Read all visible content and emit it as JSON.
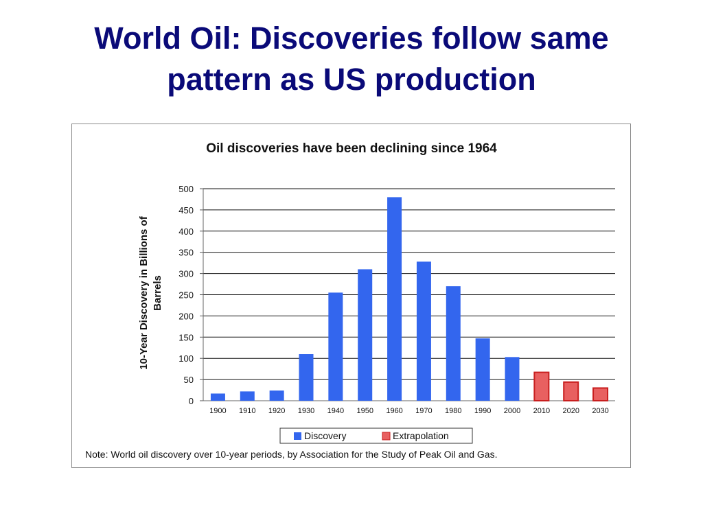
{
  "slide": {
    "title_line1": "World Oil: Discoveries follow same",
    "title_line2": "pattern as US production"
  },
  "chart_data": {
    "type": "bar",
    "title": "Oil discoveries have been declining since 1964",
    "ylabel_line1": "10-Year Discovery in Billions of",
    "ylabel_line2": "Barrels",
    "xlabel": "",
    "ylim": [
      0,
      500
    ],
    "yticks": [
      0,
      50,
      100,
      150,
      200,
      250,
      300,
      350,
      400,
      450,
      500
    ],
    "grid": true,
    "legend_position": "bottom",
    "categories": [
      "1900",
      "1910",
      "1920",
      "1930",
      "1940",
      "1950",
      "1960",
      "1970",
      "1980",
      "1990",
      "2000",
      "2010",
      "2020",
      "2030"
    ],
    "series": [
      {
        "name": "Discovery",
        "color": "#3366ee",
        "values": [
          17,
          22,
          24,
          110,
          255,
          310,
          480,
          328,
          270,
          147,
          103,
          null,
          null,
          null
        ]
      },
      {
        "name": "Extrapolation",
        "color": "#e86060",
        "border": "#c81e1e",
        "values": [
          null,
          null,
          null,
          null,
          null,
          null,
          null,
          null,
          null,
          null,
          null,
          67,
          44,
          30
        ]
      }
    ],
    "note": "Note: World oil discovery over 10-year periods, by Association for the Study of Peak Oil and Gas."
  }
}
